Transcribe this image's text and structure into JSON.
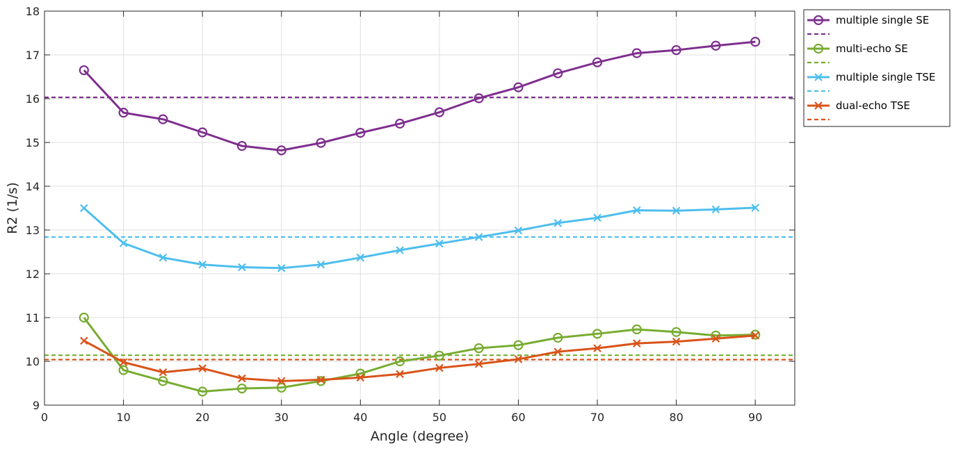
{
  "chart_data": {
    "type": "line",
    "xlabel": "Angle (degree)",
    "ylabel": "R2 (1/s)",
    "xlim": [
      0,
      95
    ],
    "ylim": [
      9,
      18
    ],
    "xticks": [
      0,
      10,
      20,
      30,
      40,
      50,
      60,
      70,
      80,
      90
    ],
    "yticks": [
      9,
      10,
      11,
      12,
      13,
      14,
      15,
      16,
      17,
      18
    ],
    "grid": true,
    "legend_position": "outside-top-right",
    "x": [
      5,
      10,
      15,
      20,
      25,
      30,
      35,
      40,
      45,
      50,
      55,
      60,
      65,
      70,
      75,
      80,
      85,
      90
    ],
    "series": [
      {
        "name": "multiple single SE",
        "color": "#7E2F8E",
        "marker": "circle",
        "values": [
          16.65,
          15.68,
          15.53,
          15.23,
          14.92,
          14.82,
          14.99,
          15.22,
          15.43,
          15.69,
          16.01,
          16.26,
          16.58,
          16.83,
          17.04,
          17.11,
          17.21,
          17.3
        ],
        "mean": 16.03
      },
      {
        "name": "multi-echo SE",
        "color": "#77AC30",
        "marker": "circle",
        "values": [
          11.0,
          9.8,
          9.55,
          9.31,
          9.38,
          9.4,
          9.55,
          9.72,
          10.0,
          10.13,
          10.3,
          10.37,
          10.54,
          10.63,
          10.73,
          10.67,
          10.59,
          10.61
        ],
        "mean": 10.14
      },
      {
        "name": "multiple single TSE",
        "color": "#4DBEEE",
        "marker": "x",
        "values": [
          13.5,
          12.7,
          12.37,
          12.21,
          12.15,
          12.13,
          12.21,
          12.37,
          12.54,
          12.69,
          12.84,
          12.99,
          13.16,
          13.28,
          13.45,
          13.44,
          13.47,
          13.51
        ],
        "mean": 12.84
      },
      {
        "name": "dual-echo TSE",
        "color": "#D95319",
        "marker": "x",
        "values": [
          10.47,
          9.98,
          9.75,
          9.84,
          9.61,
          9.55,
          9.58,
          9.63,
          9.71,
          9.85,
          9.94,
          10.05,
          10.22,
          10.3,
          10.41,
          10.45,
          10.52,
          10.59
        ],
        "mean": 10.04
      }
    ]
  }
}
